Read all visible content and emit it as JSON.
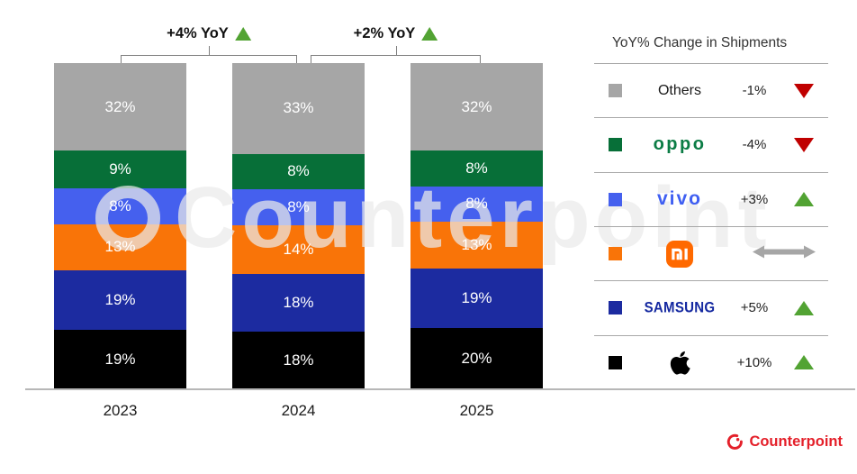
{
  "chart_data": {
    "type": "bar",
    "stacked": true,
    "categories": [
      "2023",
      "2024",
      "2025"
    ],
    "unit": "%",
    "ylim": [
      0,
      100
    ],
    "grid": false,
    "legend_position": "right",
    "series": [
      {
        "name": "Others",
        "color": "#a6a6a6",
        "values": [
          32,
          33,
          32
        ]
      },
      {
        "name": "OPPO",
        "color": "#076f38",
        "values": [
          9,
          8,
          8
        ]
      },
      {
        "name": "vivo",
        "color": "#4560ee",
        "values": [
          8,
          8,
          8
        ]
      },
      {
        "name": "Xiaomi",
        "color": "#f97408",
        "values": [
          13,
          14,
          13
        ]
      },
      {
        "name": "Samsung",
        "color": "#1c2ba0",
        "values": [
          19,
          18,
          19
        ]
      },
      {
        "name": "Apple",
        "color": "#000000",
        "values": [
          19,
          18,
          20
        ]
      }
    ],
    "annotations": [
      {
        "label": "+4% YoY",
        "between": [
          "2023",
          "2024"
        ],
        "direction": "up"
      },
      {
        "label": "+2% YoY",
        "between": [
          "2024",
          "2025"
        ],
        "direction": "up"
      }
    ]
  },
  "legend": {
    "title": "YoY% Change in Shipments",
    "rows": [
      {
        "brand": "Others",
        "logo": "text",
        "logo_text": "Others",
        "color": "#a6a6a6",
        "change": "-1%",
        "direction": "down"
      },
      {
        "brand": "OPPO",
        "logo": "oppo",
        "logo_text": "oppo",
        "color": "#076f38",
        "change": "-4%",
        "direction": "down"
      },
      {
        "brand": "vivo",
        "logo": "vivo",
        "logo_text": "vivo",
        "color": "#4560ee",
        "change": "+3%",
        "direction": "up"
      },
      {
        "brand": "Xiaomi",
        "logo": "mi",
        "logo_text": "mi",
        "color": "#f97408",
        "change": "",
        "direction": "flat"
      },
      {
        "brand": "Samsung",
        "logo": "samsung",
        "logo_text": "SAMSUNG",
        "color": "#1c2ba0",
        "change": "+5%",
        "direction": "up"
      },
      {
        "brand": "Apple",
        "logo": "apple",
        "logo_text": "",
        "color": "#000000",
        "change": "+10%",
        "direction": "up"
      }
    ]
  },
  "watermark": {
    "text": "Counterpoint"
  },
  "footer": {
    "brand": "Counterpoint"
  },
  "colors": {
    "up_green": "#52a333",
    "down_red": "#c00000",
    "flat_gray": "#a6a6a6",
    "axis_gray": "#b7b7b7",
    "bracket_gray": "#7f7f7f",
    "brand_red": "#e4202a",
    "oppo_logo_green": "#0b7c45",
    "vivo_logo_blue": "#3f5ff2",
    "samsung_logo_blue": "#1428a0",
    "mi_badge_orange": "#ff6900"
  }
}
